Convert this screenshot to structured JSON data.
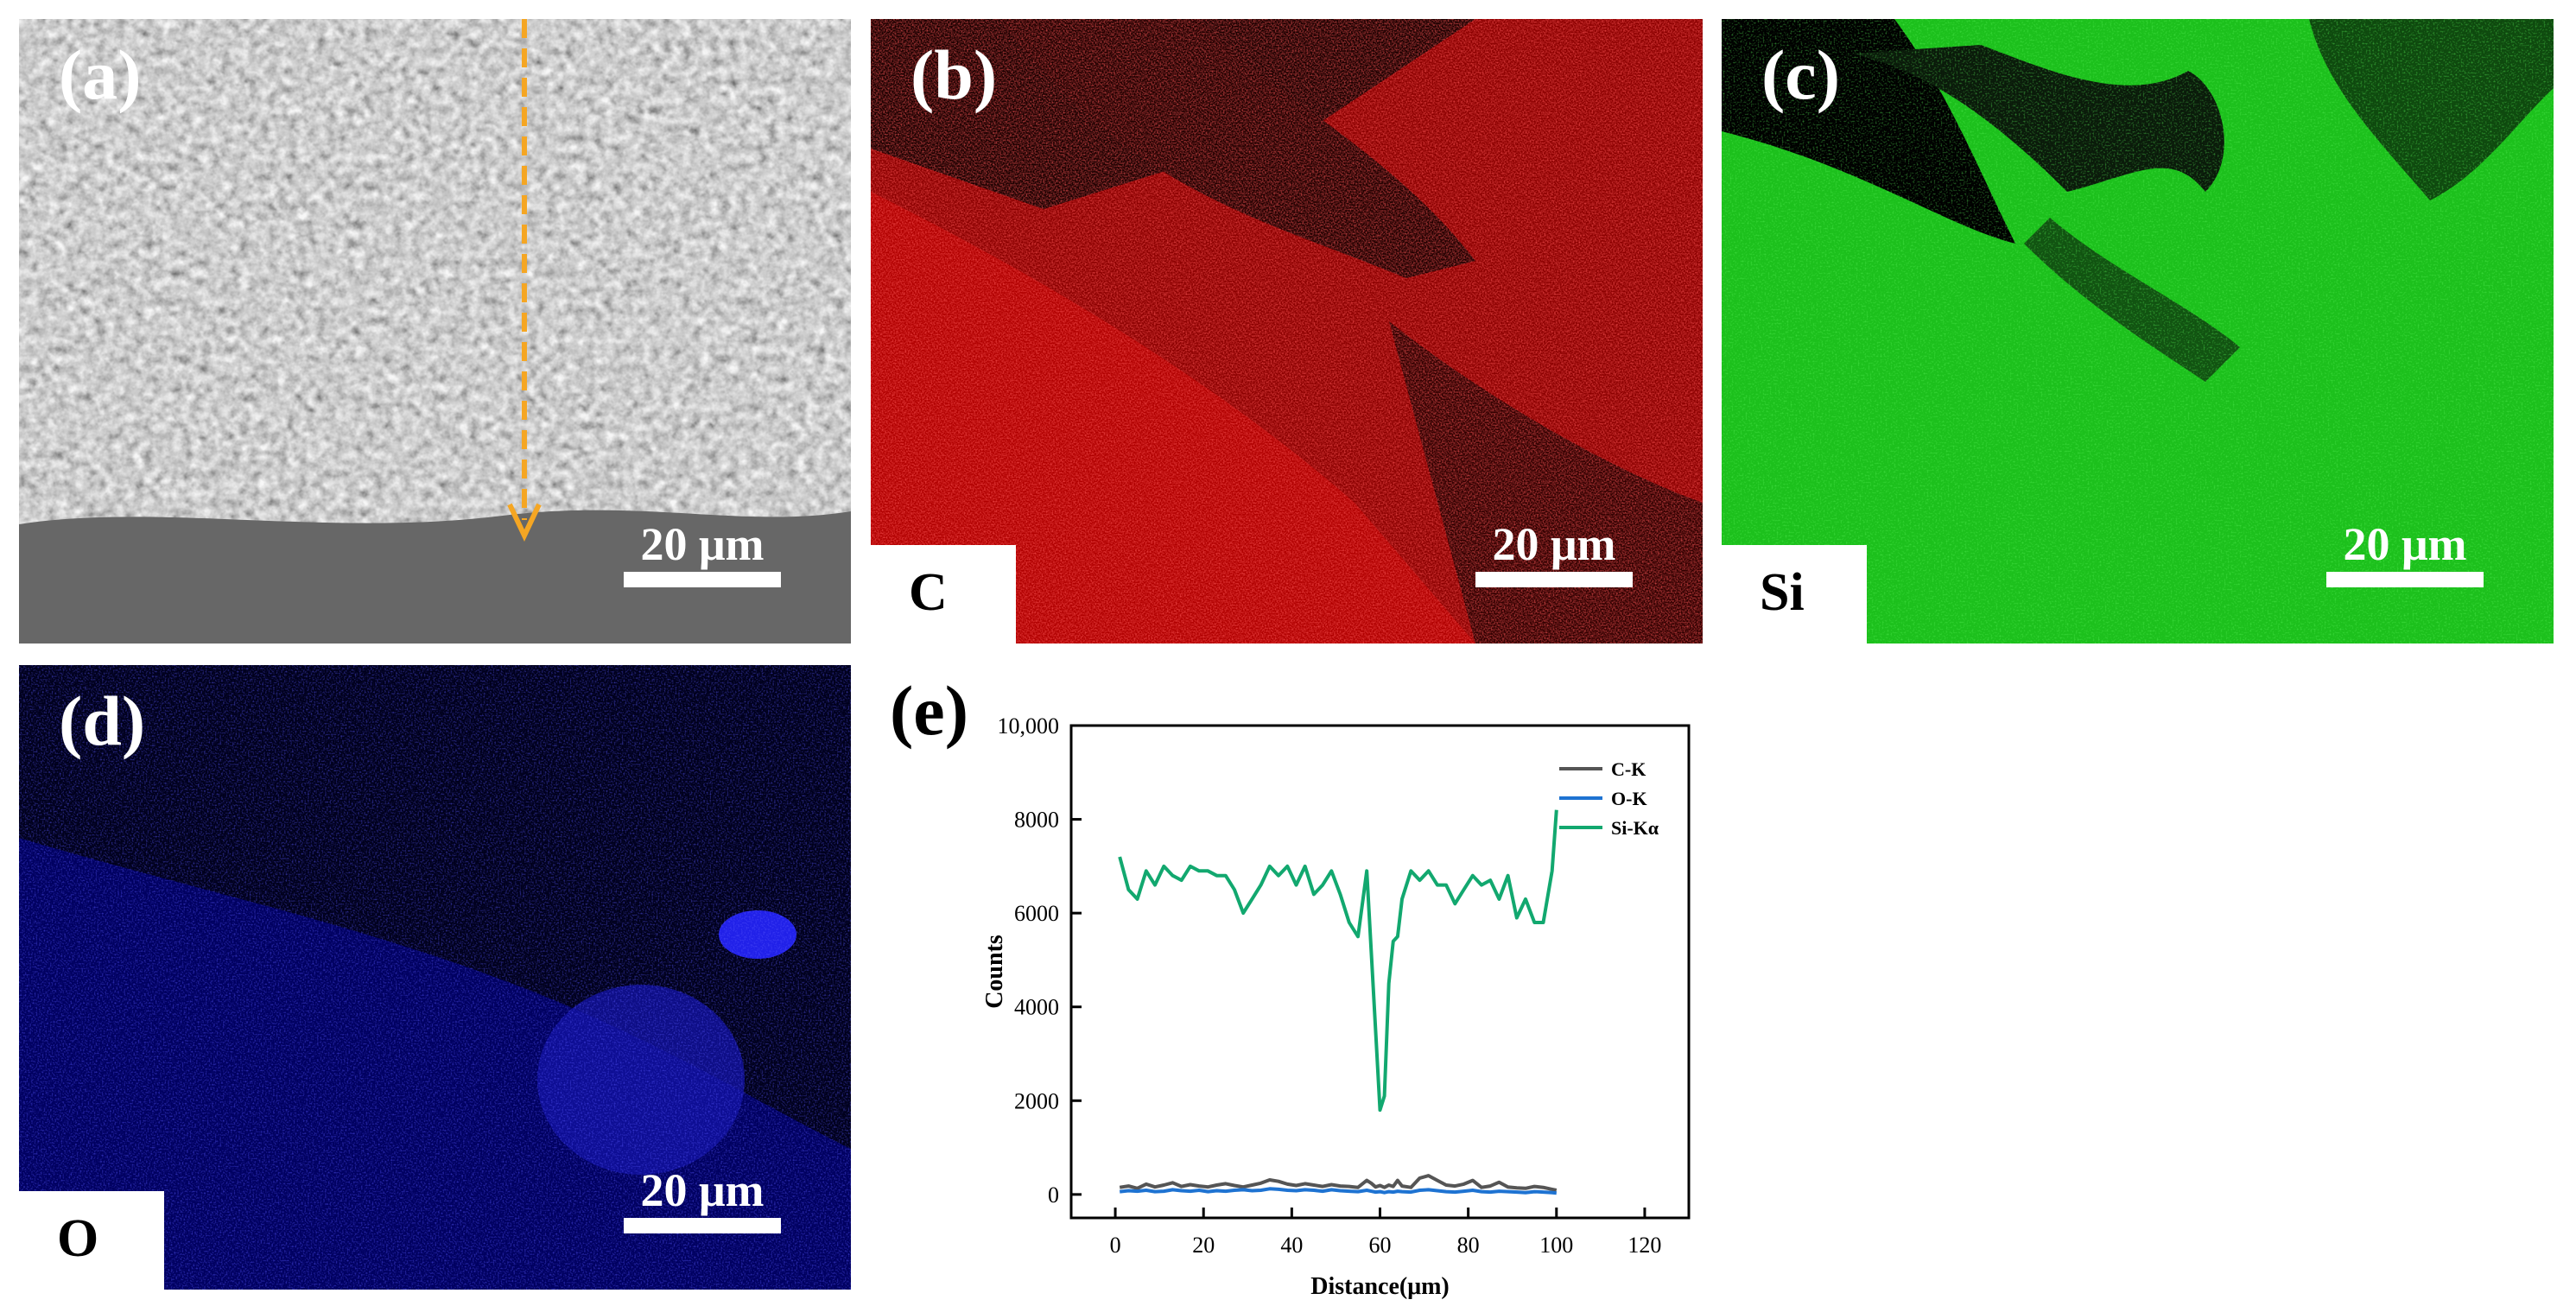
{
  "panels": {
    "a": {
      "letter": "(a)",
      "scale_label": "20 μm"
    },
    "b": {
      "letter": "(b)",
      "scale_label": "20 μm",
      "element": "C",
      "color": "#ff1a1a"
    },
    "c": {
      "letter": "(c)",
      "scale_label": "20 μm",
      "element": "Si",
      "color": "#1fd41f"
    },
    "d": {
      "letter": "(d)",
      "scale_label": "20 μm",
      "element": "O",
      "color": "#1a1aff"
    },
    "e": {
      "letter": "(e)"
    }
  },
  "colors": {
    "line_arrow": "#f5a623",
    "c_series": "#555555",
    "o_series": "#1e73d2",
    "si_series": "#12a86f"
  },
  "chart_data": {
    "type": "line",
    "xlabel": "Distance(μm)",
    "ylabel": "Counts",
    "xlim": [
      -10,
      130
    ],
    "ylim": [
      -500,
      10000
    ],
    "x_ticks": [
      0,
      20,
      40,
      60,
      80,
      100,
      120
    ],
    "y_ticks": [
      0,
      2000,
      4000,
      6000,
      8000,
      10000
    ],
    "y_tick_labels": [
      "0",
      "2000",
      "4000",
      "6000",
      "8000",
      "10,000"
    ],
    "legend_position": "top-right",
    "x": [
      1,
      3,
      5,
      7,
      9,
      11,
      13,
      15,
      17,
      19,
      21,
      23,
      25,
      27,
      29,
      31,
      33,
      35,
      37,
      39,
      41,
      43,
      45,
      47,
      49,
      51,
      53,
      55,
      57,
      58,
      59,
      60,
      61,
      62,
      63,
      64,
      65,
      67,
      69,
      71,
      73,
      75,
      77,
      79,
      81,
      83,
      85,
      87,
      89,
      91,
      93,
      95,
      97,
      99,
      100
    ],
    "series": [
      {
        "name": "C-K",
        "values": [
          150,
          180,
          130,
          220,
          160,
          200,
          250,
          170,
          210,
          180,
          160,
          200,
          230,
          190,
          160,
          200,
          240,
          310,
          280,
          220,
          190,
          230,
          200,
          170,
          210,
          180,
          170,
          150,
          300,
          240,
          160,
          190,
          150,
          200,
          170,
          300,
          180,
          150,
          350,
          400,
          300,
          200,
          180,
          220,
          300,
          150,
          180,
          260,
          160,
          140,
          130,
          170,
          150,
          110,
          90
        ]
      },
      {
        "name": "O-K",
        "values": [
          60,
          80,
          70,
          90,
          60,
          70,
          100,
          80,
          70,
          90,
          60,
          80,
          70,
          90,
          100,
          80,
          90,
          120,
          110,
          90,
          80,
          100,
          90,
          70,
          100,
          80,
          70,
          60,
          90,
          70,
          50,
          60,
          40,
          60,
          50,
          70,
          60,
          50,
          90,
          100,
          80,
          60,
          50,
          70,
          90,
          60,
          50,
          70,
          60,
          50,
          40,
          60,
          50,
          40,
          30
        ]
      },
      {
        "name": "Si-Kα",
        "values": [
          7200,
          6500,
          6300,
          6900,
          6600,
          7000,
          6800,
          6700,
          7000,
          6900,
          6900,
          6800,
          6800,
          6500,
          6000,
          6300,
          6600,
          7000,
          6800,
          7000,
          6600,
          7000,
          6400,
          6600,
          6900,
          6400,
          5800,
          5500,
          6900,
          5200,
          3500,
          1800,
          2100,
          4500,
          5400,
          5500,
          6300,
          6900,
          6700,
          6900,
          6600,
          6600,
          6200,
          6500,
          6800,
          6600,
          6700,
          6300,
          6800,
          5900,
          6300,
          5800,
          5800,
          6900,
          8200
        ]
      }
    ]
  }
}
